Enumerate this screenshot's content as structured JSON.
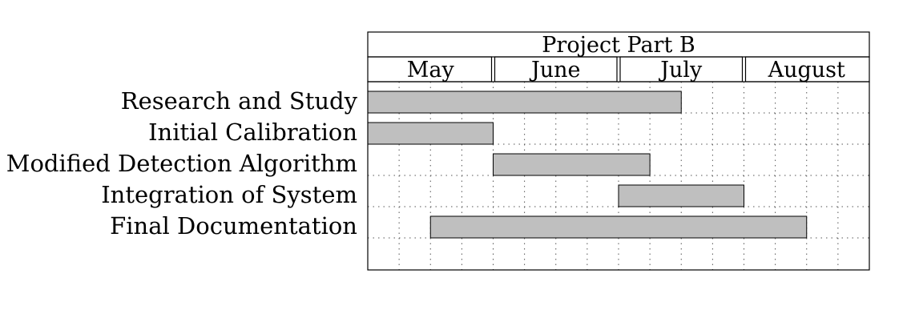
{
  "chart_data": {
    "type": "gantt",
    "title": "Project Part B",
    "time_unit": "week",
    "months": [
      {
        "label": "May",
        "weeks": 4
      },
      {
        "label": "June",
        "weeks": 4
      },
      {
        "label": "July",
        "weeks": 4
      },
      {
        "label": "August",
        "weeks": 4
      }
    ],
    "total_weeks": 16,
    "grid": true,
    "tasks": [
      {
        "name": "Research and Study",
        "start_week": 1,
        "end_week": 10
      },
      {
        "name": "Initial Calibration",
        "start_week": 1,
        "end_week": 4
      },
      {
        "name": "Modified Detection Algorithm",
        "start_week": 5,
        "end_week": 9
      },
      {
        "name": "Integration of System",
        "start_week": 9,
        "end_week": 12
      },
      {
        "name": "Final Documentation",
        "start_week": 3,
        "end_week": 14
      }
    ],
    "colors": {
      "bar_fill": "#bfbfbf",
      "bar_stroke": "#000000",
      "grid": "#555555"
    }
  }
}
